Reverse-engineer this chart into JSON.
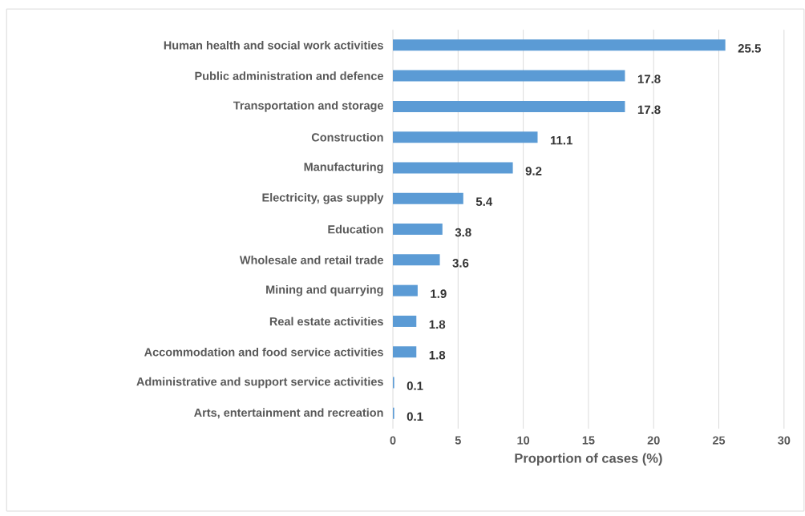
{
  "chart_data": {
    "type": "bar",
    "orientation": "horizontal",
    "xlabel": "Proportion of cases (%)",
    "categories": [
      "Human health and social work activities",
      "Public administration and defence",
      "Transportation and storage",
      "Construction",
      "Manufacturing",
      "Electricity, gas supply",
      "Education",
      "Wholesale and retail trade",
      "Mining and quarrying",
      "Real estate activities",
      "Accommodation and food service activities",
      "Administrative and support service activities",
      "Arts, entertainment and recreation"
    ],
    "values": [
      25.5,
      17.8,
      17.8,
      11.1,
      9.2,
      5.4,
      3.8,
      3.6,
      1.9,
      1.8,
      1.8,
      0.1,
      0.1
    ],
    "color": "#5b9bd5",
    "xlim": [
      0,
      30
    ],
    "xticks": [
      0,
      5,
      10,
      15,
      20,
      25,
      30
    ],
    "grid": "x",
    "data_labels": true
  }
}
